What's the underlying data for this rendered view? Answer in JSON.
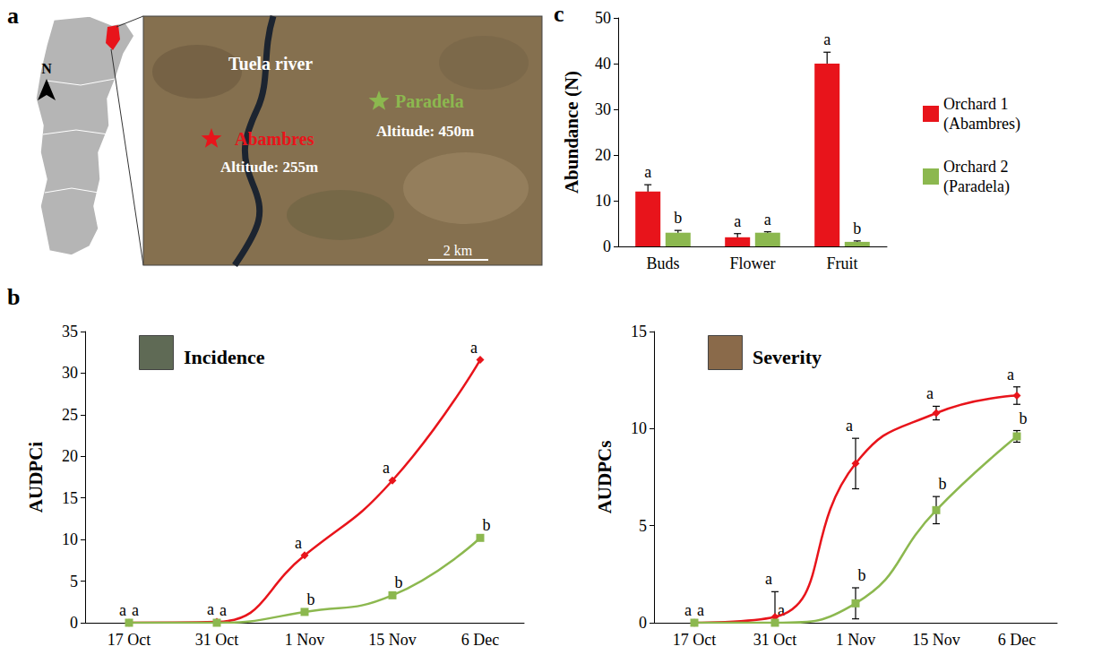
{
  "map": {
    "panel": "a",
    "north": "N",
    "river": "Tuela river",
    "scale": "2 km",
    "sites": [
      {
        "name": "Abambres",
        "altitude": "Altitude: 255m",
        "color": "#e8141b"
      },
      {
        "name": "Paradela",
        "altitude": "Altitude: 450m",
        "color": "#8cb84f"
      }
    ]
  },
  "chart_data": [
    {
      "panel": "b",
      "type": "line",
      "title": "Incidence",
      "y_label": "AUDPCi",
      "categories": [
        "17 Oct",
        "31 Oct",
        "1 Nov",
        "15 Nov",
        "6 Dec"
      ],
      "ylim": [
        0,
        35
      ],
      "yticks": [
        0,
        5,
        10,
        15,
        20,
        25,
        30,
        35
      ],
      "grid": false,
      "series": [
        {
          "color": "#e8141b",
          "marker": "diamond",
          "line_style": "solid",
          "values": [
            0,
            0.1,
            8.1,
            17.1,
            31.6
          ],
          "point_labels": [
            "a",
            "a",
            "a",
            "a",
            "a"
          ]
        },
        {
          "color": "#8cb84f",
          "marker": "square",
          "line_style": "solid",
          "values": [
            0,
            0,
            1.3,
            3.3,
            10.2
          ],
          "point_labels": [
            "a",
            "a",
            "b",
            "b",
            "b"
          ]
        }
      ]
    },
    {
      "type": "line",
      "title": "Severity",
      "y_label": "AUDPCs",
      "categories": [
        "17 Oct",
        "31 Oct",
        "1 Nov",
        "15 Nov",
        "6 Dec"
      ],
      "ylim": [
        0,
        15
      ],
      "yticks": [
        0,
        5,
        10,
        15
      ],
      "grid": false,
      "series": [
        {
          "color": "#e8141b",
          "marker": "diamond",
          "line_style": "solid",
          "values": [
            0,
            0.3,
            8.2,
            10.8,
            11.7
          ],
          "errors": [
            0,
            1.3,
            1.3,
            0.35,
            0.45
          ],
          "point_labels": [
            "a",
            "a",
            "a",
            "a",
            "a"
          ]
        },
        {
          "color": "#8cb84f",
          "marker": "square",
          "line_style": "solid",
          "values": [
            0,
            0,
            1.0,
            5.8,
            9.6
          ],
          "errors": [
            0,
            0,
            0.8,
            0.7,
            0.3
          ],
          "point_labels": [
            "a",
            "a",
            "b",
            "b",
            "b"
          ]
        }
      ]
    },
    {
      "panel": "c",
      "type": "bar",
      "y_label": "Abundance (N)",
      "categories": [
        "Buds",
        "Flower",
        "Fruit"
      ],
      "ylim": [
        0,
        50
      ],
      "yticks": [
        0,
        10,
        20,
        30,
        40,
        50
      ],
      "grid": false,
      "legend": "right",
      "series": [
        {
          "name": "Orchard 1 (Abambres)",
          "color": "#e8141b",
          "values": [
            12,
            2,
            40
          ],
          "errors": [
            1.5,
            0.8,
            2.5
          ],
          "point_labels": [
            "a",
            "a",
            "a"
          ]
        },
        {
          "name": "Orchard 2 (Paradela)",
          "color": "#8cb84f",
          "values": [
            3,
            3,
            1
          ],
          "errors": [
            0.5,
            0.2,
            0.2
          ],
          "point_labels": [
            "b",
            "a",
            "b"
          ]
        }
      ]
    }
  ]
}
